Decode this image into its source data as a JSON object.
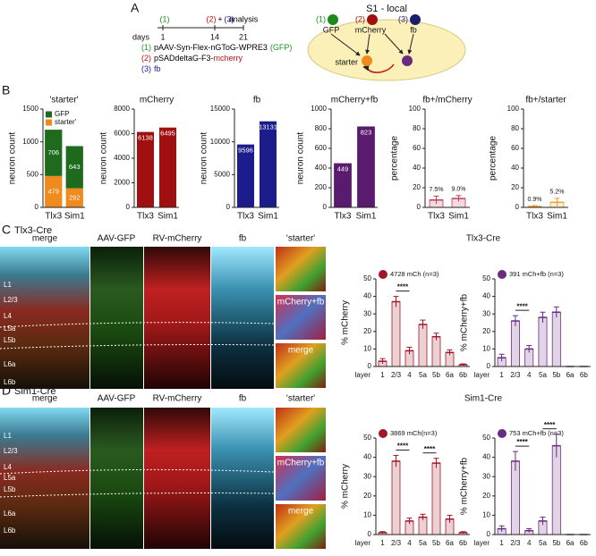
{
  "panel_a": {
    "label": "A",
    "timeline_steps": [
      {
        "text": "(1)",
        "color": "#1a9a1a"
      },
      {
        "text": "(2)",
        "color": "#c01010"
      },
      {
        "text": "+",
        "color": "#000000"
      },
      {
        "text": "(3)",
        "color": "#2020a0"
      },
      {
        "text": "analysis",
        "color": "#000000"
      }
    ],
    "days_label": "days",
    "days": [
      "1",
      "14",
      "21"
    ],
    "constructs": [
      [
        {
          "text": "(1)",
          "color": "#1a9a1a"
        },
        {
          "text": "pAAV-Syn-Flex-nGToG-WPRE3",
          "color": "#000000"
        },
        {
          "text": "(GFP)",
          "color": "#1a9a1a"
        }
      ],
      [
        {
          "text": "(2)",
          "color": "#c01010"
        },
        {
          "text": "pSADdeltaG-F3-",
          "color": "#000000"
        },
        {
          "text": "mcherry",
          "color": "#c01010"
        }
      ],
      [
        {
          "text": "(3)",
          "color": "#2020a0"
        },
        {
          "text": "fb",
          "color": "#2020a0"
        }
      ]
    ],
    "diagram_title": "S1 - local",
    "nodes": [
      {
        "marker": "(1)",
        "label": "GFP",
        "color": "#1a8a1a"
      },
      {
        "marker": "(2)",
        "label": "mCherry",
        "color": "#a01010"
      },
      {
        "marker": "(3)",
        "label": "fb",
        "color": "#1c1c6c"
      }
    ],
    "starter": "starter"
  },
  "panel_b": {
    "label": "B"
  },
  "panel_c": {
    "label": "C",
    "title": "Tlx3-Cre",
    "columns": [
      "merge",
      "AAV-GFP",
      "RV-mCherry",
      "fb"
    ],
    "insets": [
      "'starter'",
      "mCherry+fb",
      "merge"
    ],
    "layers": [
      "L1",
      "L2/3",
      "L4",
      "L5a",
      "L5b",
      "L6a",
      "L6b"
    ],
    "chart_title": "Tlx3-Cre"
  },
  "panel_d": {
    "label": "D",
    "title": "Sim1-Cre",
    "columns": [
      "merge",
      "AAV-GFP",
      "RV-mCherry",
      "fb"
    ],
    "insets": [
      "'starter'",
      "mCherry+fb",
      "merge"
    ],
    "layers": [
      "L1",
      "L2/3",
      "L4",
      "L5a",
      "L5b",
      "L6a",
      "L6b"
    ],
    "chart_title": "Sim1-Cre"
  },
  "chart_data": [
    {
      "type": "stacked_bar",
      "title": "'starter'",
      "ylabel": "neuron count",
      "categories": [
        "Tlx3",
        "Sim1"
      ],
      "series": [
        {
          "name": "starter'",
          "color": "#f08a1c",
          "values": [
            479,
            292
          ]
        },
        {
          "name": "GFP",
          "color": "#1e6b1e",
          "values": [
            706,
            643
          ]
        }
      ],
      "ylim": [
        0,
        1500
      ],
      "yticks": [
        0,
        500,
        1000,
        1500
      ],
      "data_labels": true,
      "legend": "top-left"
    },
    {
      "type": "bar",
      "title": "mCherry",
      "ylabel": "neuron count",
      "categories": [
        "Tlx3",
        "Sim1"
      ],
      "values": [
        6138,
        6495
      ],
      "color": "#a01010",
      "ylim": [
        0,
        8000
      ],
      "yticks": [
        0,
        2000,
        4000,
        6000,
        8000
      ],
      "data_labels": true
    },
    {
      "type": "bar",
      "title": "fb",
      "ylabel": "neuron count",
      "categories": [
        "Tlx3",
        "Sim1"
      ],
      "values": [
        9596,
        13131
      ],
      "color": "#1c1c8c",
      "ylim": [
        0,
        15000
      ],
      "yticks": [
        0,
        5000,
        10000,
        15000
      ],
      "data_labels": true
    },
    {
      "type": "bar",
      "title": "mCherry+fb",
      "ylabel": "neuron count",
      "categories": [
        "Tlx3",
        "Sim1"
      ],
      "values": [
        449,
        823
      ],
      "color": "#5a1a6e",
      "ylim": [
        0,
        1000
      ],
      "yticks": [
        0,
        200,
        400,
        600,
        800,
        1000
      ],
      "data_labels": true
    },
    {
      "type": "bar",
      "title": "fb+/mCherry",
      "ylabel": "percentage",
      "categories": [
        "Tlx3",
        "Sim1"
      ],
      "values": [
        7.5,
        9.0
      ],
      "value_labels": [
        "7.5%",
        "9.0%"
      ],
      "errors": [
        4,
        3
      ],
      "color": "#c0405a",
      "ylim": [
        0,
        100
      ],
      "yticks": [
        0,
        20,
        40,
        60,
        80,
        100
      ],
      "data_labels": true
    },
    {
      "type": "bar",
      "title": "fb+/starter",
      "ylabel": "percentage",
      "categories": [
        "Tlx3",
        "Sim1"
      ],
      "values": [
        0.9,
        5.2
      ],
      "value_labels": [
        "0.9%",
        "5.2%"
      ],
      "errors": [
        1,
        4
      ],
      "color": "#f0a030",
      "ylim": [
        0,
        100
      ],
      "yticks": [
        0,
        20,
        40,
        60,
        80,
        100
      ],
      "data_labels": true
    },
    {
      "type": "bar",
      "ylabel": "% mCherry",
      "xlabel": "layer",
      "categories": [
        "1",
        "2/3",
        "4",
        "5a",
        "5b",
        "6a",
        "6b"
      ],
      "series": [
        {
          "name": "4728 mCh (n=3)",
          "color": "#a01828",
          "values": [
            3,
            37,
            9,
            24,
            17,
            8,
            1
          ],
          "errors": [
            1.5,
            3,
            2,
            2.5,
            2,
            1.5,
            0.5
          ]
        }
      ],
      "ylim": [
        0,
        50
      ],
      "yticks": [
        0,
        10,
        20,
        30,
        40,
        50
      ],
      "annotations": [
        {
          "text": "****",
          "between": [
            "2/3",
            "4"
          ]
        }
      ]
    },
    {
      "type": "bar",
      "ylabel": "% mCherry+fb",
      "xlabel": "layer",
      "categories": [
        "1",
        "2/3",
        "4",
        "5a",
        "5b",
        "6a",
        "6b"
      ],
      "series": [
        {
          "name": "391 mCh+fb (n=3)",
          "color": "#6a2a80",
          "values": [
            5,
            26,
            10,
            28,
            31,
            0,
            0
          ],
          "errors": [
            2,
            3,
            2,
            3,
            3,
            0,
            0
          ]
        }
      ],
      "ylim": [
        0,
        50
      ],
      "yticks": [
        0,
        10,
        20,
        30,
        40,
        50
      ],
      "annotations": [
        {
          "text": "****",
          "between": [
            "2/3",
            "4"
          ]
        }
      ]
    },
    {
      "type": "bar",
      "ylabel": "% mCherry",
      "xlabel": "layer",
      "categories": [
        "1",
        "2/3",
        "4",
        "5a",
        "5b",
        "6a",
        "6b"
      ],
      "series": [
        {
          "name": "3869 mCh(n=3)",
          "color": "#a01828",
          "values": [
            1,
            38,
            7,
            9,
            37,
            8,
            1
          ],
          "errors": [
            0.5,
            3,
            1.5,
            1.5,
            2.5,
            2,
            0.5
          ]
        }
      ],
      "ylim": [
        0,
        50
      ],
      "yticks": [
        0,
        10,
        20,
        30,
        40,
        50
      ],
      "annotations": [
        {
          "text": "****",
          "between": [
            "2/3",
            "4"
          ]
        },
        {
          "text": "****",
          "between": [
            "5a",
            "5b"
          ]
        }
      ]
    },
    {
      "type": "bar",
      "ylabel": "% mCherry+fb",
      "xlabel": "layer",
      "categories": [
        "1",
        "2/3",
        "4",
        "5a",
        "5b",
        "6a",
        "6b"
      ],
      "series": [
        {
          "name": "753 mCh+fb (n=3)",
          "color": "#6a2a80",
          "values": [
            3,
            38,
            2,
            7,
            46,
            0,
            0
          ],
          "errors": [
            1.5,
            5,
            1,
            2,
            6,
            0,
            0
          ]
        }
      ],
      "ylim": [
        0,
        50
      ],
      "yticks": [
        0,
        10,
        20,
        30,
        40,
        50
      ],
      "annotations": [
        {
          "text": "****",
          "between": [
            "2/3",
            "4"
          ]
        },
        {
          "text": "****",
          "between": [
            "5a",
            "5b"
          ]
        }
      ]
    }
  ]
}
